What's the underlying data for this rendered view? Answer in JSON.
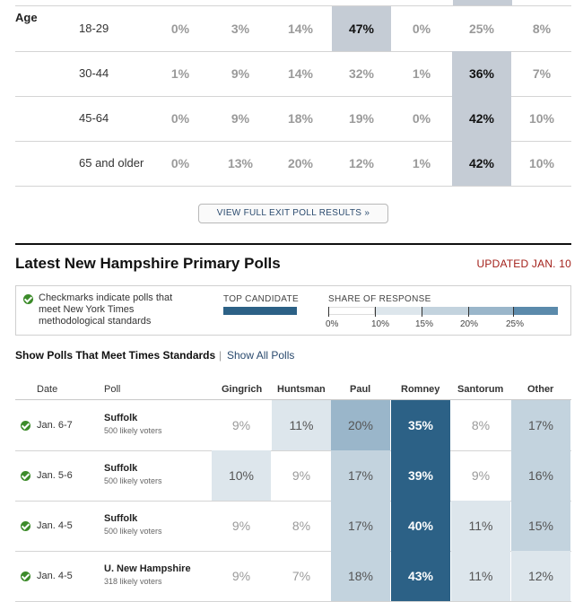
{
  "colors": {
    "highlight_gray": "#c5ccd5",
    "brand_dark_blue": "#2c6186",
    "mid_blue": "#5b8aab",
    "light_blue": "#9ab6ca",
    "pale_blue": "#cfdce5",
    "updated_red": "#a3201a",
    "check_green": "#3c8b2a"
  },
  "exit_poll": {
    "group_label": "Age",
    "rows": [
      {
        "label": "18-29",
        "values": [
          "0%",
          "3%",
          "14%",
          "47%",
          "0%",
          "25%",
          "8%"
        ],
        "highlight": 3
      },
      {
        "label": "30-44",
        "values": [
          "1%",
          "9%",
          "14%",
          "32%",
          "1%",
          "36%",
          "7%"
        ],
        "highlight": 5
      },
      {
        "label": "45-64",
        "values": [
          "0%",
          "9%",
          "18%",
          "19%",
          "0%",
          "42%",
          "10%"
        ],
        "highlight": 5
      },
      {
        "label": "65 and older",
        "values": [
          "0%",
          "13%",
          "20%",
          "12%",
          "1%",
          "42%",
          "10%"
        ],
        "highlight": 5
      }
    ],
    "full_results_label": "View full exit poll results »"
  },
  "polls_section": {
    "title": "Latest New Hampshire Primary Polls",
    "updated": "UPDATED JAN. 10",
    "legend": {
      "checkmark_text": "Checkmarks indicate polls that meet New York Times methodological standards",
      "top_candidate_label": "TOP CANDIDATE",
      "share_label": "SHARE OF RESPONSE",
      "scale_labels": [
        "0%",
        "10%",
        "15%",
        "20%",
        "25%"
      ]
    },
    "filter": {
      "active": "Show Polls That Meet Times Standards",
      "separator": "|",
      "link": "Show All Polls"
    },
    "columns": [
      "Date",
      "Poll",
      "Gingrich",
      "Huntsman",
      "Paul",
      "Romney",
      "Santorum",
      "Other"
    ],
    "rows": [
      {
        "date": "Jan. 6-7",
        "poll": "Suffolk",
        "sample": "500 likely voters",
        "values": [
          "9%",
          "11%",
          "20%",
          "35%",
          "8%",
          "17%"
        ],
        "shares": [
          9,
          11,
          20,
          35,
          8,
          17
        ]
      },
      {
        "date": "Jan. 5-6",
        "poll": "Suffolk",
        "sample": "500 likely voters",
        "values": [
          "10%",
          "9%",
          "17%",
          "39%",
          "9%",
          "16%"
        ],
        "shares": [
          10,
          9,
          17,
          39,
          9,
          16
        ]
      },
      {
        "date": "Jan. 4-5",
        "poll": "Suffolk",
        "sample": "500 likely voters",
        "values": [
          "9%",
          "8%",
          "17%",
          "40%",
          "11%",
          "15%"
        ],
        "shares": [
          9,
          8,
          17,
          40,
          11,
          15
        ]
      },
      {
        "date": "Jan. 4-5",
        "poll": "U. New Hampshire",
        "sample": "318 likely voters",
        "values": [
          "9%",
          "7%",
          "18%",
          "43%",
          "11%",
          "12%"
        ],
        "shares": [
          9,
          7,
          18,
          43,
          11,
          12
        ]
      }
    ]
  }
}
